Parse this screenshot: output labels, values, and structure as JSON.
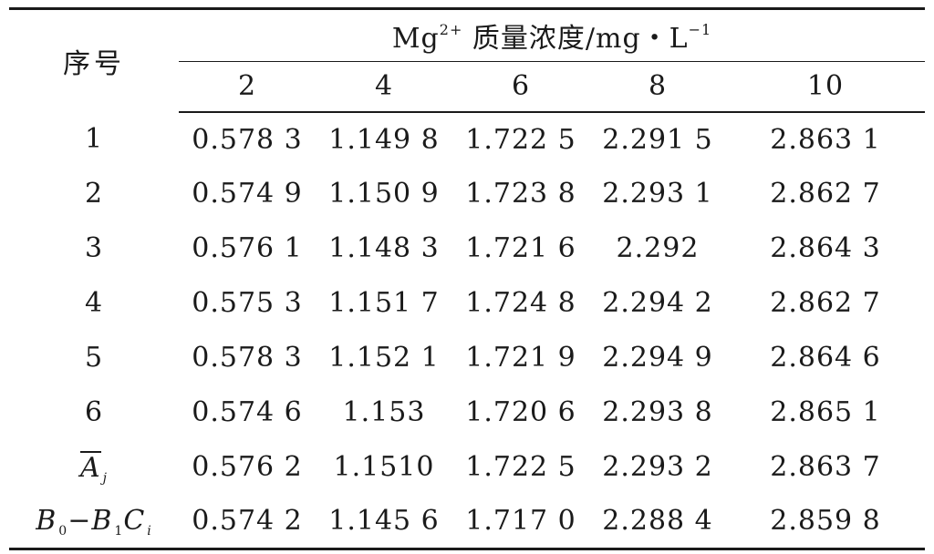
{
  "table": {
    "row_header": "序号",
    "group_header": {
      "prefix": "Mg",
      "superscript": "2+",
      "suffix": " 质量浓度/mg・L",
      "suffix_superscript": "−1"
    },
    "concentrations": [
      "2",
      "4",
      "6",
      "8",
      "10"
    ],
    "rows": [
      {
        "label": "1",
        "values": [
          "0.578 3",
          "1.149 8",
          "1.722 5",
          "2.291 5",
          "2.863 1"
        ]
      },
      {
        "label": "2",
        "values": [
          "0.574 9",
          "1.150 9",
          "1.723 8",
          "2.293 1",
          "2.862 7"
        ]
      },
      {
        "label": "3",
        "values": [
          "0.576 1",
          "1.148 3",
          "1.721 6",
          "2.292",
          "2.864 3"
        ]
      },
      {
        "label": "4",
        "values": [
          "0.575 3",
          "1.151 7",
          "1.724 8",
          "2.294 2",
          "2.862 7"
        ]
      },
      {
        "label": "5",
        "values": [
          "0.578 3",
          "1.152 1",
          "1.721 9",
          "2.294 9",
          "2.864 6"
        ]
      },
      {
        "label": "6",
        "values": [
          "0.574 6",
          "1.153",
          "1.720 6",
          "2.293 8",
          "2.865 1"
        ]
      }
    ],
    "mean_row": {
      "symbol": "A",
      "subscript": "j",
      "values": [
        "0.576 2",
        "1.1510",
        "1.722 5",
        "2.293 2",
        "2.863 7"
      ]
    },
    "fit_row": {
      "b0": "B",
      "b0_sub": "0",
      "minus": "−",
      "b1": "B",
      "b1_sub": "1",
      "c": "C",
      "c_sub": "i",
      "values": [
        "0.574 2",
        "1.145 6",
        "1.717 0",
        "2.288 4",
        "2.859 8"
      ]
    }
  }
}
